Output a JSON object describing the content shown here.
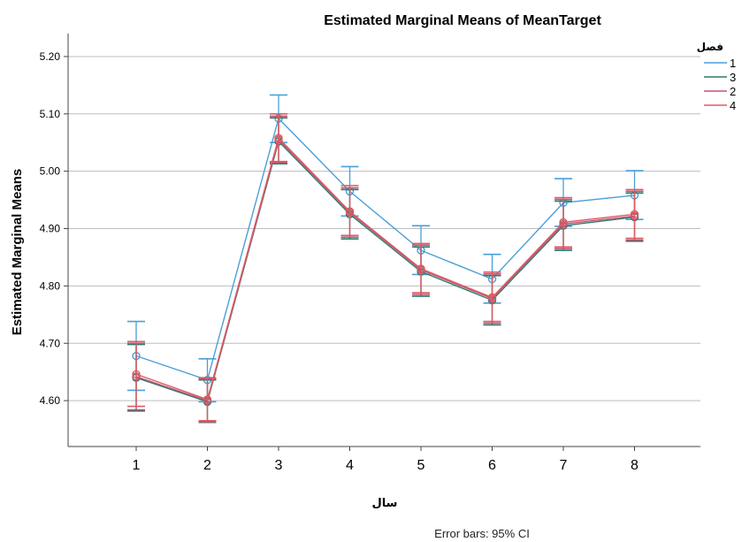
{
  "chart_data": {
    "type": "line",
    "title": "Estimated Marginal Means of MeanTarget",
    "xlabel": "سال",
    "ylabel": "Estimated Marginal Means",
    "categories": [
      "1",
      "2",
      "3",
      "4",
      "5",
      "6",
      "7",
      "8"
    ],
    "yticks": [
      "4.60",
      "4.70",
      "4.80",
      "4.90",
      "5.00",
      "5.10",
      "5.20"
    ],
    "ylim": [
      4.52,
      5.24
    ],
    "grid": true,
    "legend": {
      "title": "فصل",
      "placement": "top-right"
    },
    "note": "Error bars: 95% CI",
    "series": [
      {
        "name": "1",
        "color": "#4a9fd8",
        "values": [
          4.678,
          4.636,
          5.092,
          4.965,
          4.862,
          4.812,
          4.945,
          4.958
        ],
        "ci_low": [
          4.618,
          4.598,
          5.05,
          4.922,
          4.82,
          4.77,
          4.904,
          4.916
        ],
        "ci_high": [
          4.738,
          4.673,
          5.133,
          5.008,
          4.905,
          4.855,
          4.987,
          5.001
        ]
      },
      {
        "name": "3",
        "color": "#2f7a6a",
        "values": [
          4.64,
          4.598,
          5.052,
          4.925,
          4.825,
          4.775,
          4.905,
          4.92
        ],
        "ci_low": [
          4.582,
          4.562,
          5.013,
          4.882,
          4.782,
          4.732,
          4.862,
          4.878
        ],
        "ci_high": [
          4.698,
          4.636,
          5.093,
          4.968,
          4.868,
          4.818,
          4.948,
          4.962
        ]
      },
      {
        "name": "2",
        "color": "#c0557a",
        "values": [
          4.642,
          4.6,
          5.055,
          4.928,
          4.828,
          4.778,
          4.908,
          4.922
        ],
        "ci_low": [
          4.584,
          4.563,
          5.015,
          4.885,
          4.785,
          4.735,
          4.865,
          4.88
        ],
        "ci_high": [
          4.7,
          4.638,
          5.096,
          4.971,
          4.871,
          4.821,
          4.951,
          4.965
        ]
      },
      {
        "name": "4",
        "color": "#e05a5f",
        "values": [
          4.646,
          4.602,
          5.058,
          4.93,
          4.83,
          4.78,
          4.911,
          4.925
        ],
        "ci_low": [
          4.59,
          4.565,
          5.017,
          4.888,
          4.788,
          4.738,
          4.868,
          4.883
        ],
        "ci_high": [
          4.703,
          4.64,
          5.1,
          4.975,
          4.874,
          4.824,
          4.954,
          4.968
        ]
      }
    ]
  }
}
